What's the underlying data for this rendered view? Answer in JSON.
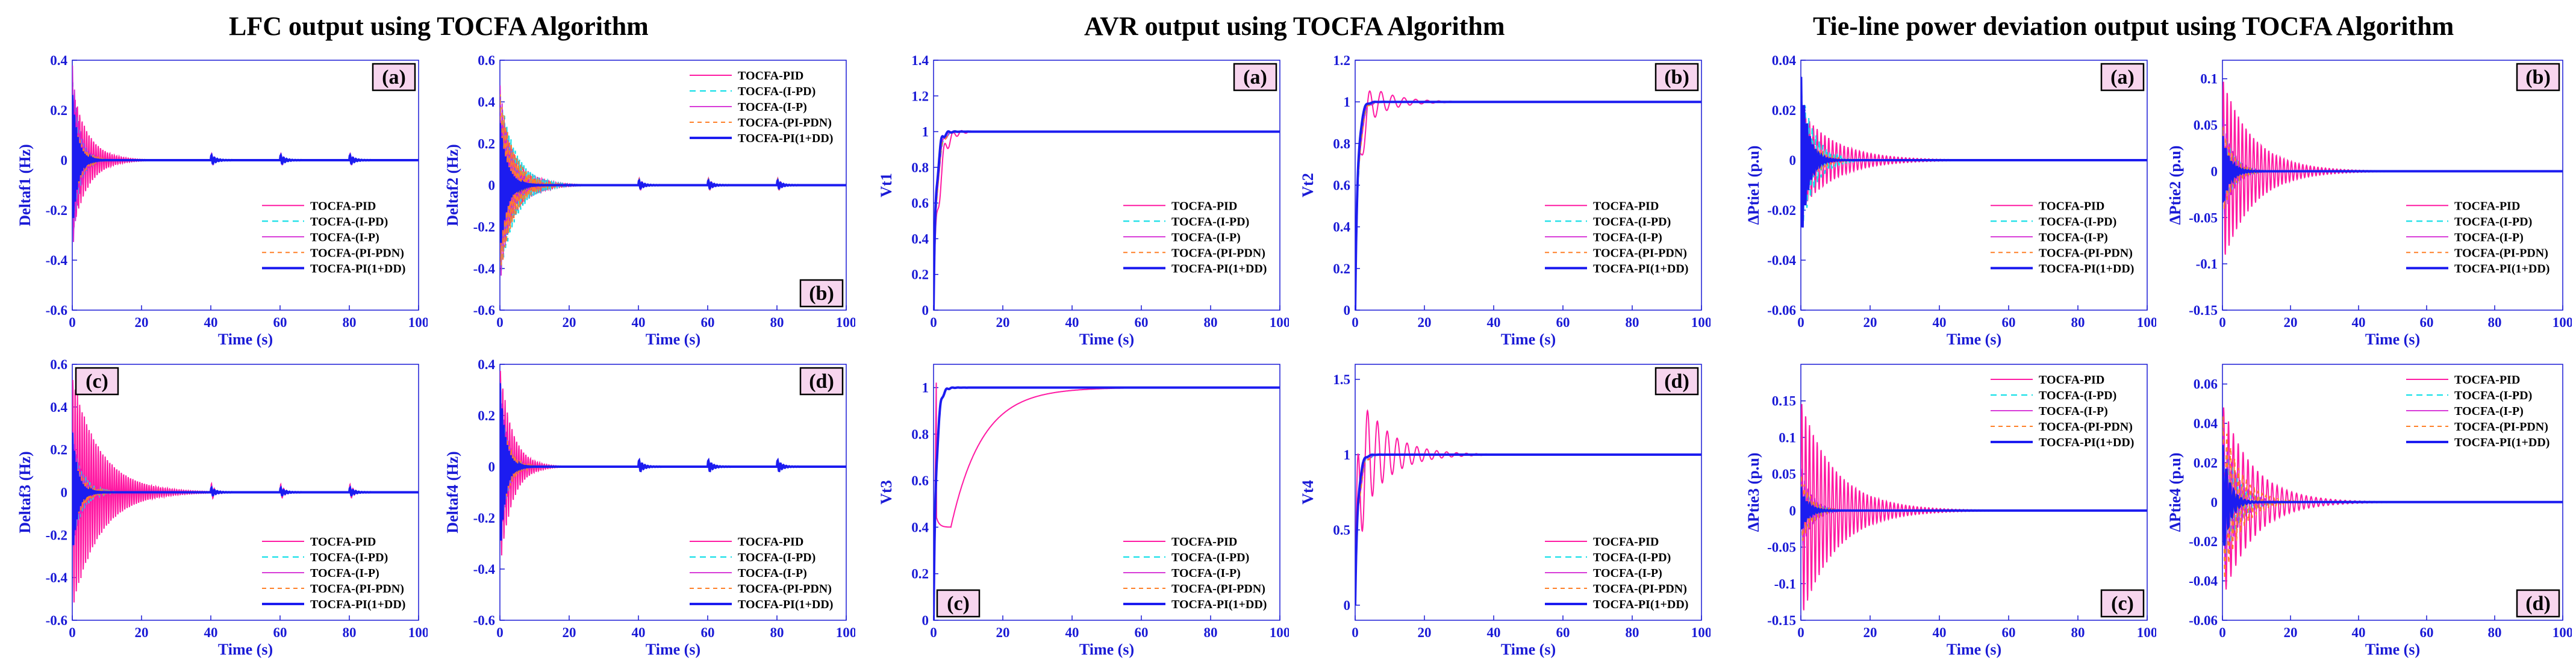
{
  "groups": [
    {
      "title": "LFC output using TOCFA Algorithm"
    },
    {
      "title": "AVR output using TOCFA Algorithm"
    },
    {
      "title": "Tie-line power deviation output using TOCFA Algorithm"
    }
  ],
  "legend": [
    "TOCFA-PID",
    "TOCFA-(I-PD)",
    "TOCFA-(I-P)",
    "TOCFA-(PI-PDN)",
    "TOCFA-PI(1+DD)"
  ],
  "series_colors": [
    "#ff1aa3",
    "#17e0e8",
    "#d21fd2",
    "#ff7f27",
    "#1c1cf0"
  ],
  "chart_data": [
    {
      "type": "line",
      "id": "lfc-a",
      "label": "(a)",
      "ylabel": "Deltaf1 (Hz)",
      "xlabel": "Time (s)",
      "xlim": [
        0,
        100
      ],
      "ylim": [
        -0.6,
        0.4
      ],
      "xticks": [
        0,
        20,
        40,
        60,
        80,
        100
      ],
      "yticks": [
        0.4,
        0.2,
        0,
        -0.2,
        -0.4,
        -0.6
      ],
      "kind": "osc",
      "amp": [
        0.3,
        0.34,
        0.4,
        0.2,
        0.28
      ],
      "tau": [
        4.5,
        2,
        2,
        2.5,
        1.5
      ],
      "freq": 1.5,
      "disturb": [
        40,
        60,
        80
      ]
    },
    {
      "type": "line",
      "id": "lfc-b",
      "label": "(b)",
      "ylabel": "Deltaf2 (Hz)",
      "xlabel": "Time (s)",
      "xlim": [
        0,
        100
      ],
      "ylim": [
        -0.6,
        0.6
      ],
      "xticks": [
        0,
        20,
        40,
        60,
        80,
        100
      ],
      "yticks": [
        0.6,
        0.4,
        0.2,
        0,
        -0.2,
        -0.4,
        -0.6
      ],
      "kind": "osc",
      "amp": [
        0.35,
        0.45,
        0.5,
        0.45,
        0.32
      ],
      "tau": [
        5,
        4.5,
        3,
        4,
        2
      ],
      "freq": 1.5,
      "disturb": [
        40,
        60,
        80
      ]
    },
    {
      "type": "line",
      "id": "lfc-c",
      "label": "(c)",
      "ylabel": "Deltaf3 (Hz)",
      "xlabel": "Time (s)",
      "xlim": [
        0,
        100
      ],
      "ylim": [
        -0.6,
        0.6
      ],
      "xticks": [
        0,
        20,
        40,
        60,
        80,
        100
      ],
      "yticks": [
        0.6,
        0.4,
        0.2,
        0,
        -0.2,
        -0.4,
        -0.6
      ],
      "kind": "osc",
      "amp": [
        0.55,
        0.25,
        0.3,
        0.2,
        0.3
      ],
      "tau": [
        8,
        3,
        2.5,
        3,
        1.5
      ],
      "freq": 1.5,
      "disturb": [
        40,
        60,
        80
      ]
    },
    {
      "type": "line",
      "id": "lfc-d",
      "label": "(d)",
      "ylabel": "Deltaf4 (Hz)",
      "xlabel": "Time (s)",
      "xlim": [
        0,
        100
      ],
      "ylim": [
        -0.6,
        0.4
      ],
      "xticks": [
        0,
        20,
        40,
        60,
        80,
        100
      ],
      "yticks": [
        0.4,
        0.2,
        0,
        -0.2,
        -0.4,
        -0.6
      ],
      "kind": "osc",
      "amp": [
        0.4,
        0.3,
        0.35,
        0.25,
        0.35
      ],
      "tau": [
        3.5,
        2,
        2,
        2.5,
        1.5
      ],
      "freq": 1.5,
      "disturb": [
        40,
        60,
        80
      ]
    },
    {
      "type": "line",
      "id": "avr-a",
      "label": "(a)",
      "ylabel": "Vt1",
      "xlabel": "Time (s)",
      "xlim": [
        0,
        100
      ],
      "ylim": [
        0,
        1.4
      ],
      "xticks": [
        0,
        20,
        40,
        60,
        80,
        100
      ],
      "yticks": [
        1.4,
        1.2,
        1,
        0.8,
        0.6,
        0.4,
        0.2,
        0
      ],
      "kind": "step",
      "amp": [
        0.15,
        0.05,
        0.08,
        0.06,
        0.1
      ],
      "tau": [
        3,
        2,
        2,
        2,
        1.5
      ],
      "freq": 0.4,
      "rise": [
        1.5,
        1,
        1,
        1,
        0.8
      ]
    },
    {
      "type": "line",
      "id": "avr-b",
      "label": "(b)",
      "ylabel": "Vt2",
      "xlabel": "Time (s)",
      "xlim": [
        0,
        100
      ],
      "ylim": [
        0,
        1.2
      ],
      "xticks": [
        0,
        20,
        40,
        60,
        80,
        100
      ],
      "yticks": [
        1.2,
        1,
        0.8,
        0.6,
        0.4,
        0.2,
        0
      ],
      "kind": "step",
      "amp": [
        0.15,
        0.05,
        0.08,
        0.06,
        0.05
      ],
      "tau": [
        7,
        2,
        2,
        2,
        1.5
      ],
      "freq": 0.3,
      "rise": [
        1.2,
        1,
        1,
        1,
        0.8
      ]
    },
    {
      "type": "line",
      "id": "avr-c",
      "label": "(c)",
      "ylabel": "Vt3",
      "xlabel": "Time (s)",
      "xlim": [
        0,
        100
      ],
      "ylim": [
        0,
        1.1
      ],
      "xticks": [
        0,
        20,
        40,
        60,
        80,
        100
      ],
      "yticks": [
        1,
        0.8,
        0.6,
        0.4,
        0.2,
        0
      ],
      "kind": "slow",
      "amp": [
        0.6,
        0.05,
        0.05,
        0.05,
        0.05
      ],
      "tau": [
        12,
        2,
        2,
        2,
        1.5
      ],
      "freq": 0.3,
      "rise": [
        1,
        1,
        1,
        1,
        1
      ]
    },
    {
      "type": "line",
      "id": "avr-d",
      "label": "(d)",
      "ylabel": "Vt4",
      "xlabel": "Time (s)",
      "xlim": [
        0,
        100
      ],
      "ylim": [
        -0.1,
        1.6
      ],
      "xticks": [
        0,
        20,
        40,
        60,
        80,
        100
      ],
      "yticks": [
        1.5,
        1,
        0.5,
        0
      ],
      "kind": "step",
      "amp": [
        0.5,
        0.1,
        0.1,
        0.1,
        0.05
      ],
      "tau": [
        8,
        2,
        2,
        2,
        1.5
      ],
      "freq": 0.35,
      "rise": [
        1,
        1,
        1,
        1,
        0.8
      ]
    },
    {
      "type": "line",
      "id": "tie-a",
      "label": "(a)",
      "ylabel": "ΔPtie1 (p.u)",
      "xlabel": "Time (s)",
      "xlim": [
        0,
        100
      ],
      "ylim": [
        -0.06,
        0.04
      ],
      "xticks": [
        0,
        20,
        40,
        60,
        80,
        100
      ],
      "yticks": [
        0.04,
        0.02,
        0,
        -0.02,
        -0.04,
        -0.06
      ],
      "kind": "osc",
      "amp": [
        0.02,
        0.03,
        0.02,
        0.015,
        0.035
      ],
      "tau": [
        10,
        4,
        3,
        4,
        2
      ],
      "freq": 0.9,
      "disturb": []
    },
    {
      "type": "line",
      "id": "tie-b",
      "label": "(b)",
      "ylabel": "ΔPtie2 (p.u)",
      "xlabel": "Time (s)",
      "xlim": [
        0,
        100
      ],
      "ylim": [
        -0.15,
        0.12
      ],
      "xticks": [
        0,
        20,
        40,
        60,
        80,
        100
      ],
      "yticks": [
        0.1,
        0.05,
        0,
        -0.05,
        -0.1,
        -0.15
      ],
      "kind": "osc",
      "amp": [
        0.1,
        0.05,
        0.06,
        0.05,
        0.04
      ],
      "tau": [
        9,
        3,
        3,
        3,
        2
      ],
      "freq": 0.9,
      "disturb": []
    },
    {
      "type": "line",
      "id": "tie-c",
      "label": "(c)",
      "ylabel": "ΔPtie3 (p.u)",
      "xlabel": "Time (s)",
      "xlim": [
        0,
        100
      ],
      "ylim": [
        -0.15,
        0.2
      ],
      "xticks": [
        0,
        20,
        40,
        60,
        80,
        100
      ],
      "yticks": [
        0.15,
        0.1,
        0.05,
        0,
        -0.05,
        -0.1,
        -0.15
      ],
      "kind": "osc",
      "amp": [
        0.15,
        0.04,
        0.06,
        0.05,
        0.03
      ],
      "tau": [
        10,
        3,
        3,
        3,
        2
      ],
      "freq": 0.9,
      "disturb": []
    },
    {
      "type": "line",
      "id": "tie-d",
      "label": "(d)",
      "ylabel": "ΔPtie4 (p.u)",
      "xlabel": "Time (s)",
      "xlim": [
        0,
        100
      ],
      "ylim": [
        -0.06,
        0.07
      ],
      "xticks": [
        0,
        20,
        40,
        60,
        80,
        100
      ],
      "yticks": [
        0.06,
        0.04,
        0.02,
        0,
        -0.02,
        -0.04,
        -0.06
      ],
      "kind": "osc",
      "amp": [
        0.05,
        0.035,
        0.04,
        0.045,
        0.03
      ],
      "tau": [
        9,
        4,
        4,
        5,
        2
      ],
      "freq": 0.7,
      "disturb": []
    }
  ]
}
